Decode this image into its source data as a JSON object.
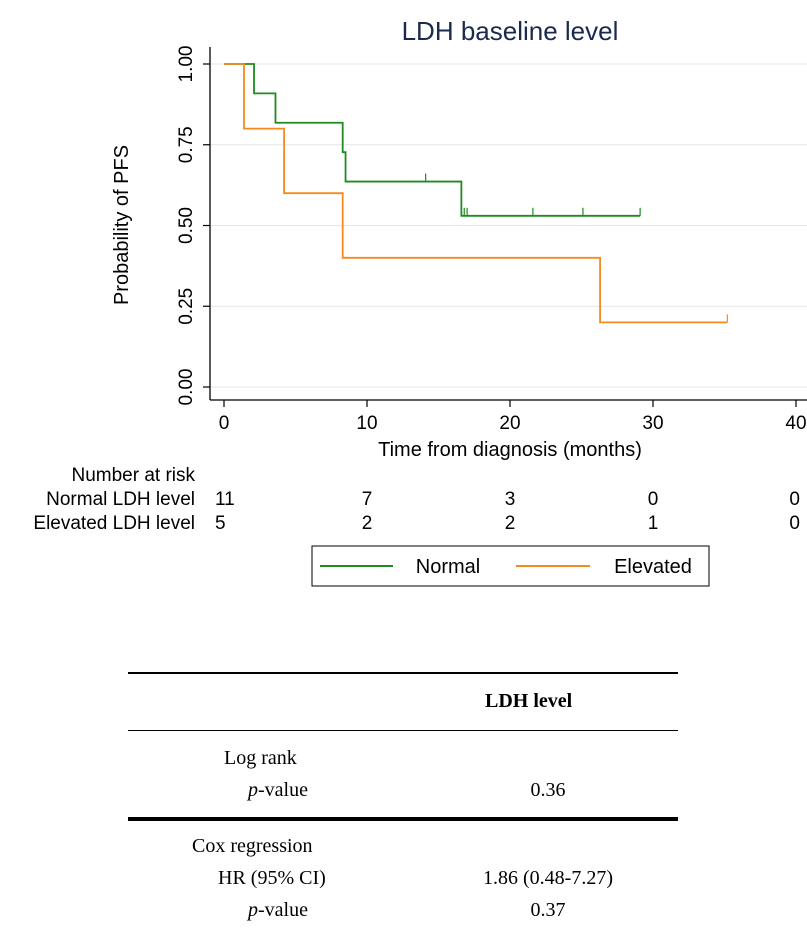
{
  "chart_data": {
    "type": "line",
    "title": "LDH baseline level",
    "xlabel": "Time from diagnosis (months)",
    "ylabel": "Probability of PFS",
    "xlim": [
      0,
      40
    ],
    "ylim": [
      0,
      1
    ],
    "xticks": [
      "0",
      "10",
      "20",
      "30",
      "40"
    ],
    "yticks": [
      "0.00",
      "0.25",
      "0.50",
      "0.75",
      "1.00"
    ],
    "grid": true,
    "series": [
      {
        "name": "Normal",
        "color": "#1f8a1f",
        "steps": [
          [
            0,
            1.0
          ],
          [
            2.1,
            0.909
          ],
          [
            3.6,
            0.818
          ],
          [
            8.3,
            0.727
          ],
          [
            8.5,
            0.636
          ],
          [
            16.6,
            0.53
          ],
          [
            29.1,
            0.53
          ]
        ],
        "censored": [
          [
            14.1,
            0.636
          ],
          [
            16.8,
            0.53
          ],
          [
            17.0,
            0.53
          ],
          [
            21.6,
            0.53
          ],
          [
            25.1,
            0.53
          ],
          [
            29.1,
            0.53
          ]
        ]
      },
      {
        "name": "Elevated",
        "color": "#f58a1f",
        "steps": [
          [
            0,
            1.0
          ],
          [
            1.4,
            0.8
          ],
          [
            4.2,
            0.6
          ],
          [
            8.3,
            0.4
          ],
          [
            26.3,
            0.2
          ],
          [
            35.2,
            0.2
          ]
        ],
        "censored": [
          [
            35.2,
            0.2
          ]
        ]
      }
    ],
    "risk_table": {
      "title": "Number at risk",
      "rows": [
        {
          "label": "Normal LDH level",
          "values": [
            "11",
            "7",
            "3",
            "0",
            "0"
          ]
        },
        {
          "label": "Elevated LDH level",
          "values": [
            "5",
            "2",
            "2",
            "1",
            "0"
          ]
        }
      ]
    },
    "legend": {
      "position": "bottom",
      "items": [
        "Normal",
        "Elevated"
      ]
    }
  },
  "stats_table": {
    "column_header": "LDH level",
    "log_rank_label": "Log rank",
    "log_rank_p_label_italic": "p",
    "log_rank_p_label_rest": "-value",
    "log_rank_p_value": "0.36",
    "cox_label": "Cox regression",
    "cox_hr_label": "HR (95% CI)",
    "cox_hr_value": "1.86 (0.48-7.27)",
    "cox_p_label_italic": "p",
    "cox_p_label_rest": "-value",
    "cox_p_value": "0.37"
  }
}
